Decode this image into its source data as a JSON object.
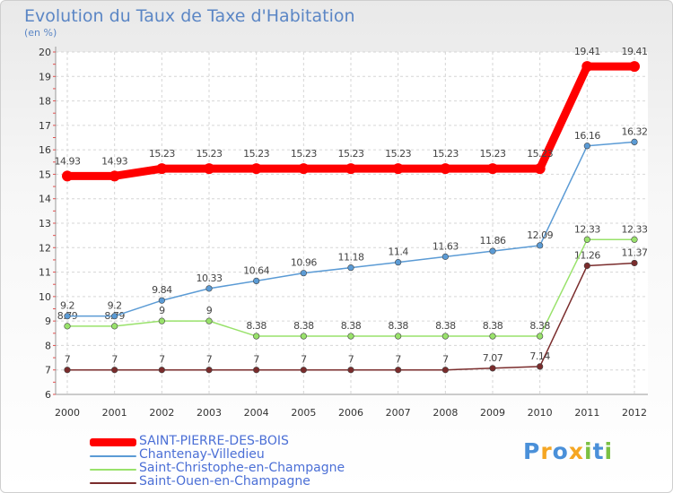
{
  "chart_data": {
    "type": "line",
    "title": "Evolution du Taux de Taxe d'Habitation",
    "subtitle": "(en %)",
    "x": [
      "2000",
      "2001",
      "2002",
      "2003",
      "2004",
      "2005",
      "2006",
      "2007",
      "2008",
      "2009",
      "2010",
      "2011",
      "2012"
    ],
    "ylim": [
      6,
      20
    ],
    "yticks": [
      "6",
      "7",
      "8",
      "9",
      "10",
      "11",
      "12",
      "13",
      "14",
      "15",
      "16",
      "17",
      "18",
      "19",
      "20"
    ],
    "grid": true,
    "legend_position": "bottom-left",
    "series": [
      {
        "name": "SAINT-PIERRE-DES-BOIS",
        "color": "#ff0000",
        "values": [
          14.93,
          14.93,
          15.23,
          15.23,
          15.23,
          15.23,
          15.23,
          15.23,
          15.23,
          15.23,
          15.23,
          19.41,
          19.41
        ],
        "labels": [
          "14.93",
          "14.93",
          "15.23",
          "15.23",
          "15.23",
          "15.23",
          "15.23",
          "15.23",
          "15.23",
          "15.23",
          "15.23",
          "19.41",
          "19.41"
        ]
      },
      {
        "name": "Chantenay-Villedieu",
        "color": "#5b9bd5",
        "values": [
          9.2,
          9.2,
          9.84,
          10.33,
          10.64,
          10.96,
          11.18,
          11.4,
          11.63,
          11.86,
          12.09,
          16.16,
          16.32
        ],
        "labels": [
          "9.2",
          "9.2",
          "9.84",
          "10.33",
          "10.64",
          "10.96",
          "11.18",
          "11.4",
          "11.63",
          "11.86",
          "12.09",
          "16.16",
          "16.32"
        ]
      },
      {
        "name": "Saint-Christophe-en-Champagne",
        "color": "#99e26b",
        "values": [
          8.79,
          8.79,
          9,
          9,
          8.38,
          8.38,
          8.38,
          8.38,
          8.38,
          8.38,
          8.38,
          12.33,
          12.33
        ],
        "labels": [
          "8.79",
          "8.79",
          "9",
          "9",
          "8.38",
          "8.38",
          "8.38",
          "8.38",
          "8.38",
          "8.38",
          "8.38",
          "12.33",
          "12.33"
        ]
      },
      {
        "name": "Saint-Ouen-en-Champagne",
        "color": "#7a2c2c",
        "values": [
          7,
          7,
          7,
          7,
          7,
          7,
          7,
          7,
          7,
          7.07,
          7.14,
          11.26,
          11.37
        ],
        "labels": [
          "7",
          "7",
          "7",
          "7",
          "7",
          "7",
          "7",
          "7",
          "7",
          "7.07",
          "7.14",
          "11.26",
          "11.37"
        ]
      }
    ]
  },
  "logo": {
    "text": [
      "P",
      "r",
      "o",
      "x",
      "i",
      "t",
      "i"
    ],
    "colors": [
      "#4a90d9",
      "#f5a623",
      "#4a90d9",
      "#f5a623",
      "#7bc043",
      "#4a90d9",
      "#7bc043"
    ]
  }
}
